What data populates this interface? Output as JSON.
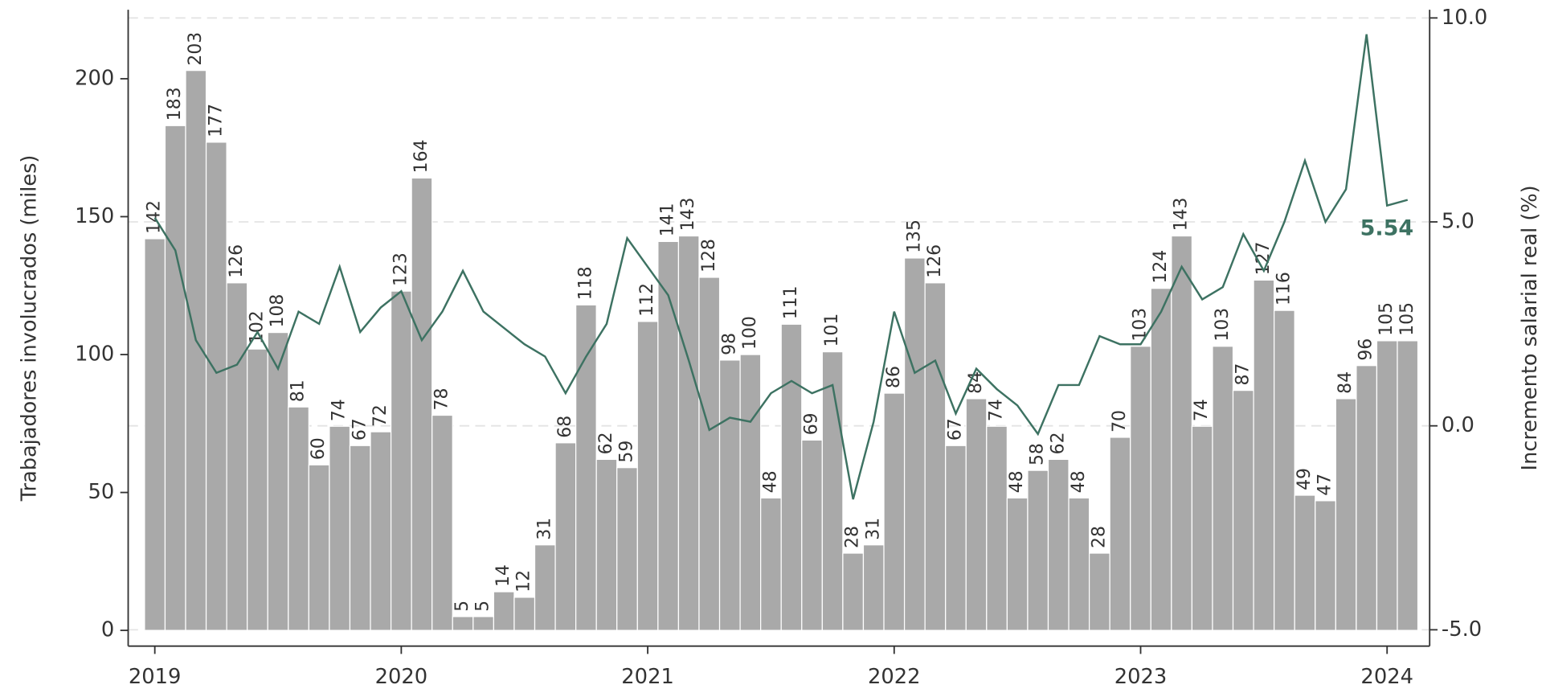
{
  "chart_data": {
    "type": "combo",
    "y_label": "Trabajadores involucrados (miles)",
    "y2_label": "Incremento salarial real (%)",
    "categories": [
      "2019",
      null,
      null,
      null,
      null,
      null,
      null,
      null,
      null,
      null,
      null,
      null,
      "2020",
      null,
      null,
      null,
      null,
      null,
      null,
      null,
      null,
      null,
      null,
      null,
      "2021",
      null,
      null,
      null,
      null,
      null,
      null,
      null,
      null,
      null,
      null,
      null,
      "2022",
      null,
      null,
      null,
      null,
      null,
      null,
      null,
      null,
      null,
      null,
      null,
      "2023",
      null,
      null,
      null,
      null,
      null,
      null,
      null,
      null,
      null,
      null,
      null,
      "2024",
      null
    ],
    "series": [
      {
        "type": "bar",
        "color": "#a9a9a9",
        "values": [
          142,
          183,
          203,
          177,
          126,
          102,
          108,
          81,
          60,
          74,
          67,
          72,
          123,
          164,
          78,
          5,
          5,
          14,
          12,
          31,
          68,
          118,
          62,
          59,
          112,
          141,
          143,
          128,
          98,
          100,
          48,
          111,
          69,
          101,
          28,
          31,
          86,
          135,
          126,
          67,
          84,
          74,
          48,
          58,
          62,
          48,
          28,
          70,
          103,
          124,
          143,
          74,
          103,
          87,
          127,
          116,
          49,
          47,
          84,
          96,
          105,
          105
        ]
      },
      {
        "type": "line",
        "axis": "y2",
        "color": "#3d7262",
        "values": [
          5.1,
          4.3,
          2.1,
          1.3,
          1.5,
          2.3,
          1.4,
          2.8,
          2.5,
          3.9,
          2.3,
          2.9,
          3.3,
          2.1,
          2.8,
          3.8,
          2.8,
          2.4,
          2.0,
          1.7,
          0.8,
          1.7,
          2.5,
          4.6,
          3.9,
          3.2,
          1.6,
          -0.1,
          0.2,
          0.1,
          0.8,
          1.1,
          0.8,
          1.0,
          -1.8,
          0.1,
          2.8,
          1.3,
          1.6,
          0.3,
          1.4,
          0.9,
          0.5,
          -0.2,
          1.0,
          1.0,
          2.2,
          2.0,
          2.0,
          2.8,
          3.9,
          3.1,
          3.4,
          4.7,
          3.8,
          5.0,
          6.5,
          5.0,
          5.8,
          9.6,
          5.4,
          5.54
        ],
        "value_labels": [
          null,
          null,
          null,
          null,
          null,
          null,
          null,
          null,
          null,
          null,
          null,
          null,
          null,
          null,
          null,
          null,
          null,
          null,
          null,
          null,
          null,
          null,
          null,
          null,
          null,
          null,
          null,
          null,
          null,
          null,
          null,
          null,
          null,
          null,
          null,
          null,
          null,
          null,
          null,
          null,
          null,
          null,
          null,
          null,
          null,
          null,
          null,
          null,
          null,
          null,
          null,
          null,
          null,
          null,
          null,
          null,
          null,
          null,
          null,
          null,
          null,
          "5.54"
        ]
      }
    ],
    "ylim": [
      -5.7,
      225
    ],
    "yticks": [
      0,
      50,
      100,
      150,
      200
    ],
    "y2lim": [
      -5.4,
      10.2
    ],
    "y2ticks": [
      {
        "value": -5,
        "label": "-5.0"
      },
      {
        "value": 0,
        "label": "0.0"
      },
      {
        "value": 5,
        "label": "5.0"
      },
      {
        "value": 10,
        "label": "10.0"
      }
    ],
    "grid": "y2"
  }
}
